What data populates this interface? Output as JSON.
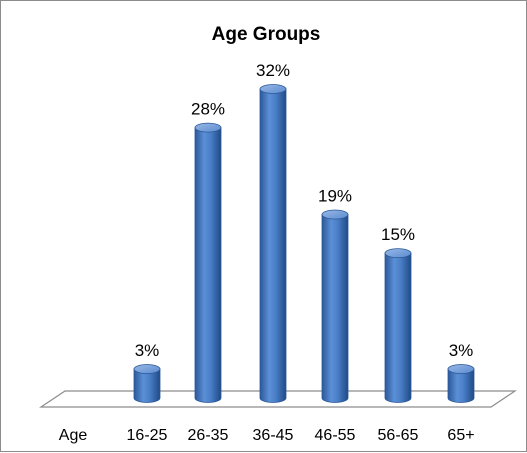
{
  "chart_data": {
    "type": "bar",
    "title": "Age Groups",
    "axis_label": "Age",
    "categories": [
      "16-25",
      "26-35",
      "36-45",
      "46-55",
      "56-65",
      "65+"
    ],
    "values": [
      3,
      28,
      32,
      19,
      15,
      3
    ],
    "value_suffix": "%",
    "ylim": [
      0,
      35
    ],
    "grid": false,
    "legend": "none",
    "bar_style": "3d-cylinder",
    "colors": {
      "bar": "#4a7fc7",
      "bar_dark": "#2b5899",
      "bar_light": "#8fb2e4",
      "floor": "#ffffff",
      "floor_stroke": "#8c8c8c"
    }
  }
}
